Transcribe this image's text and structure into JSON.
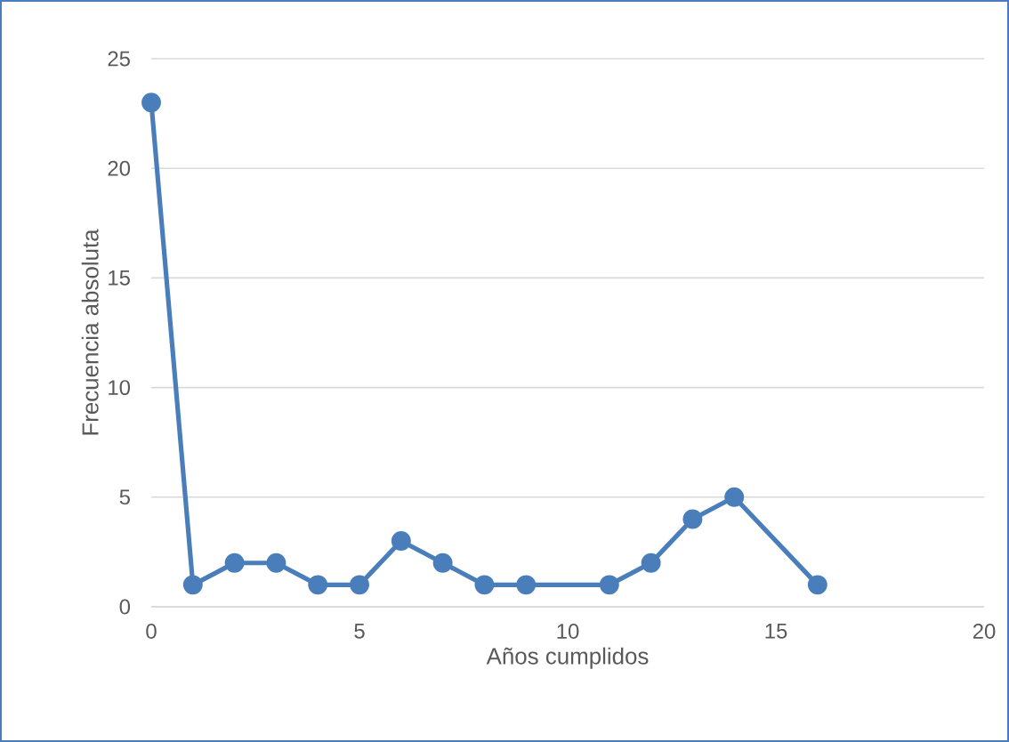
{
  "chart_data": {
    "type": "line",
    "xlabel": "Años cumplidos",
    "ylabel": "Frecuencia absoluta",
    "series": [
      {
        "color": "#4a7ebb",
        "x": [
          0,
          1,
          2,
          3,
          4,
          5,
          6,
          7,
          8,
          9,
          11,
          12,
          13,
          14,
          16
        ],
        "values": [
          23,
          1,
          2,
          2,
          1,
          1,
          3,
          2,
          1,
          1,
          1,
          2,
          4,
          5,
          1
        ]
      }
    ],
    "xlim": [
      0,
      20
    ],
    "xticks": [
      0,
      5,
      10,
      15,
      20
    ],
    "ylim": [
      0,
      25
    ],
    "yticks": [
      0,
      5,
      10,
      15,
      20,
      25
    ],
    "grid": "y",
    "marker": "circle",
    "line_style": "solid"
  }
}
